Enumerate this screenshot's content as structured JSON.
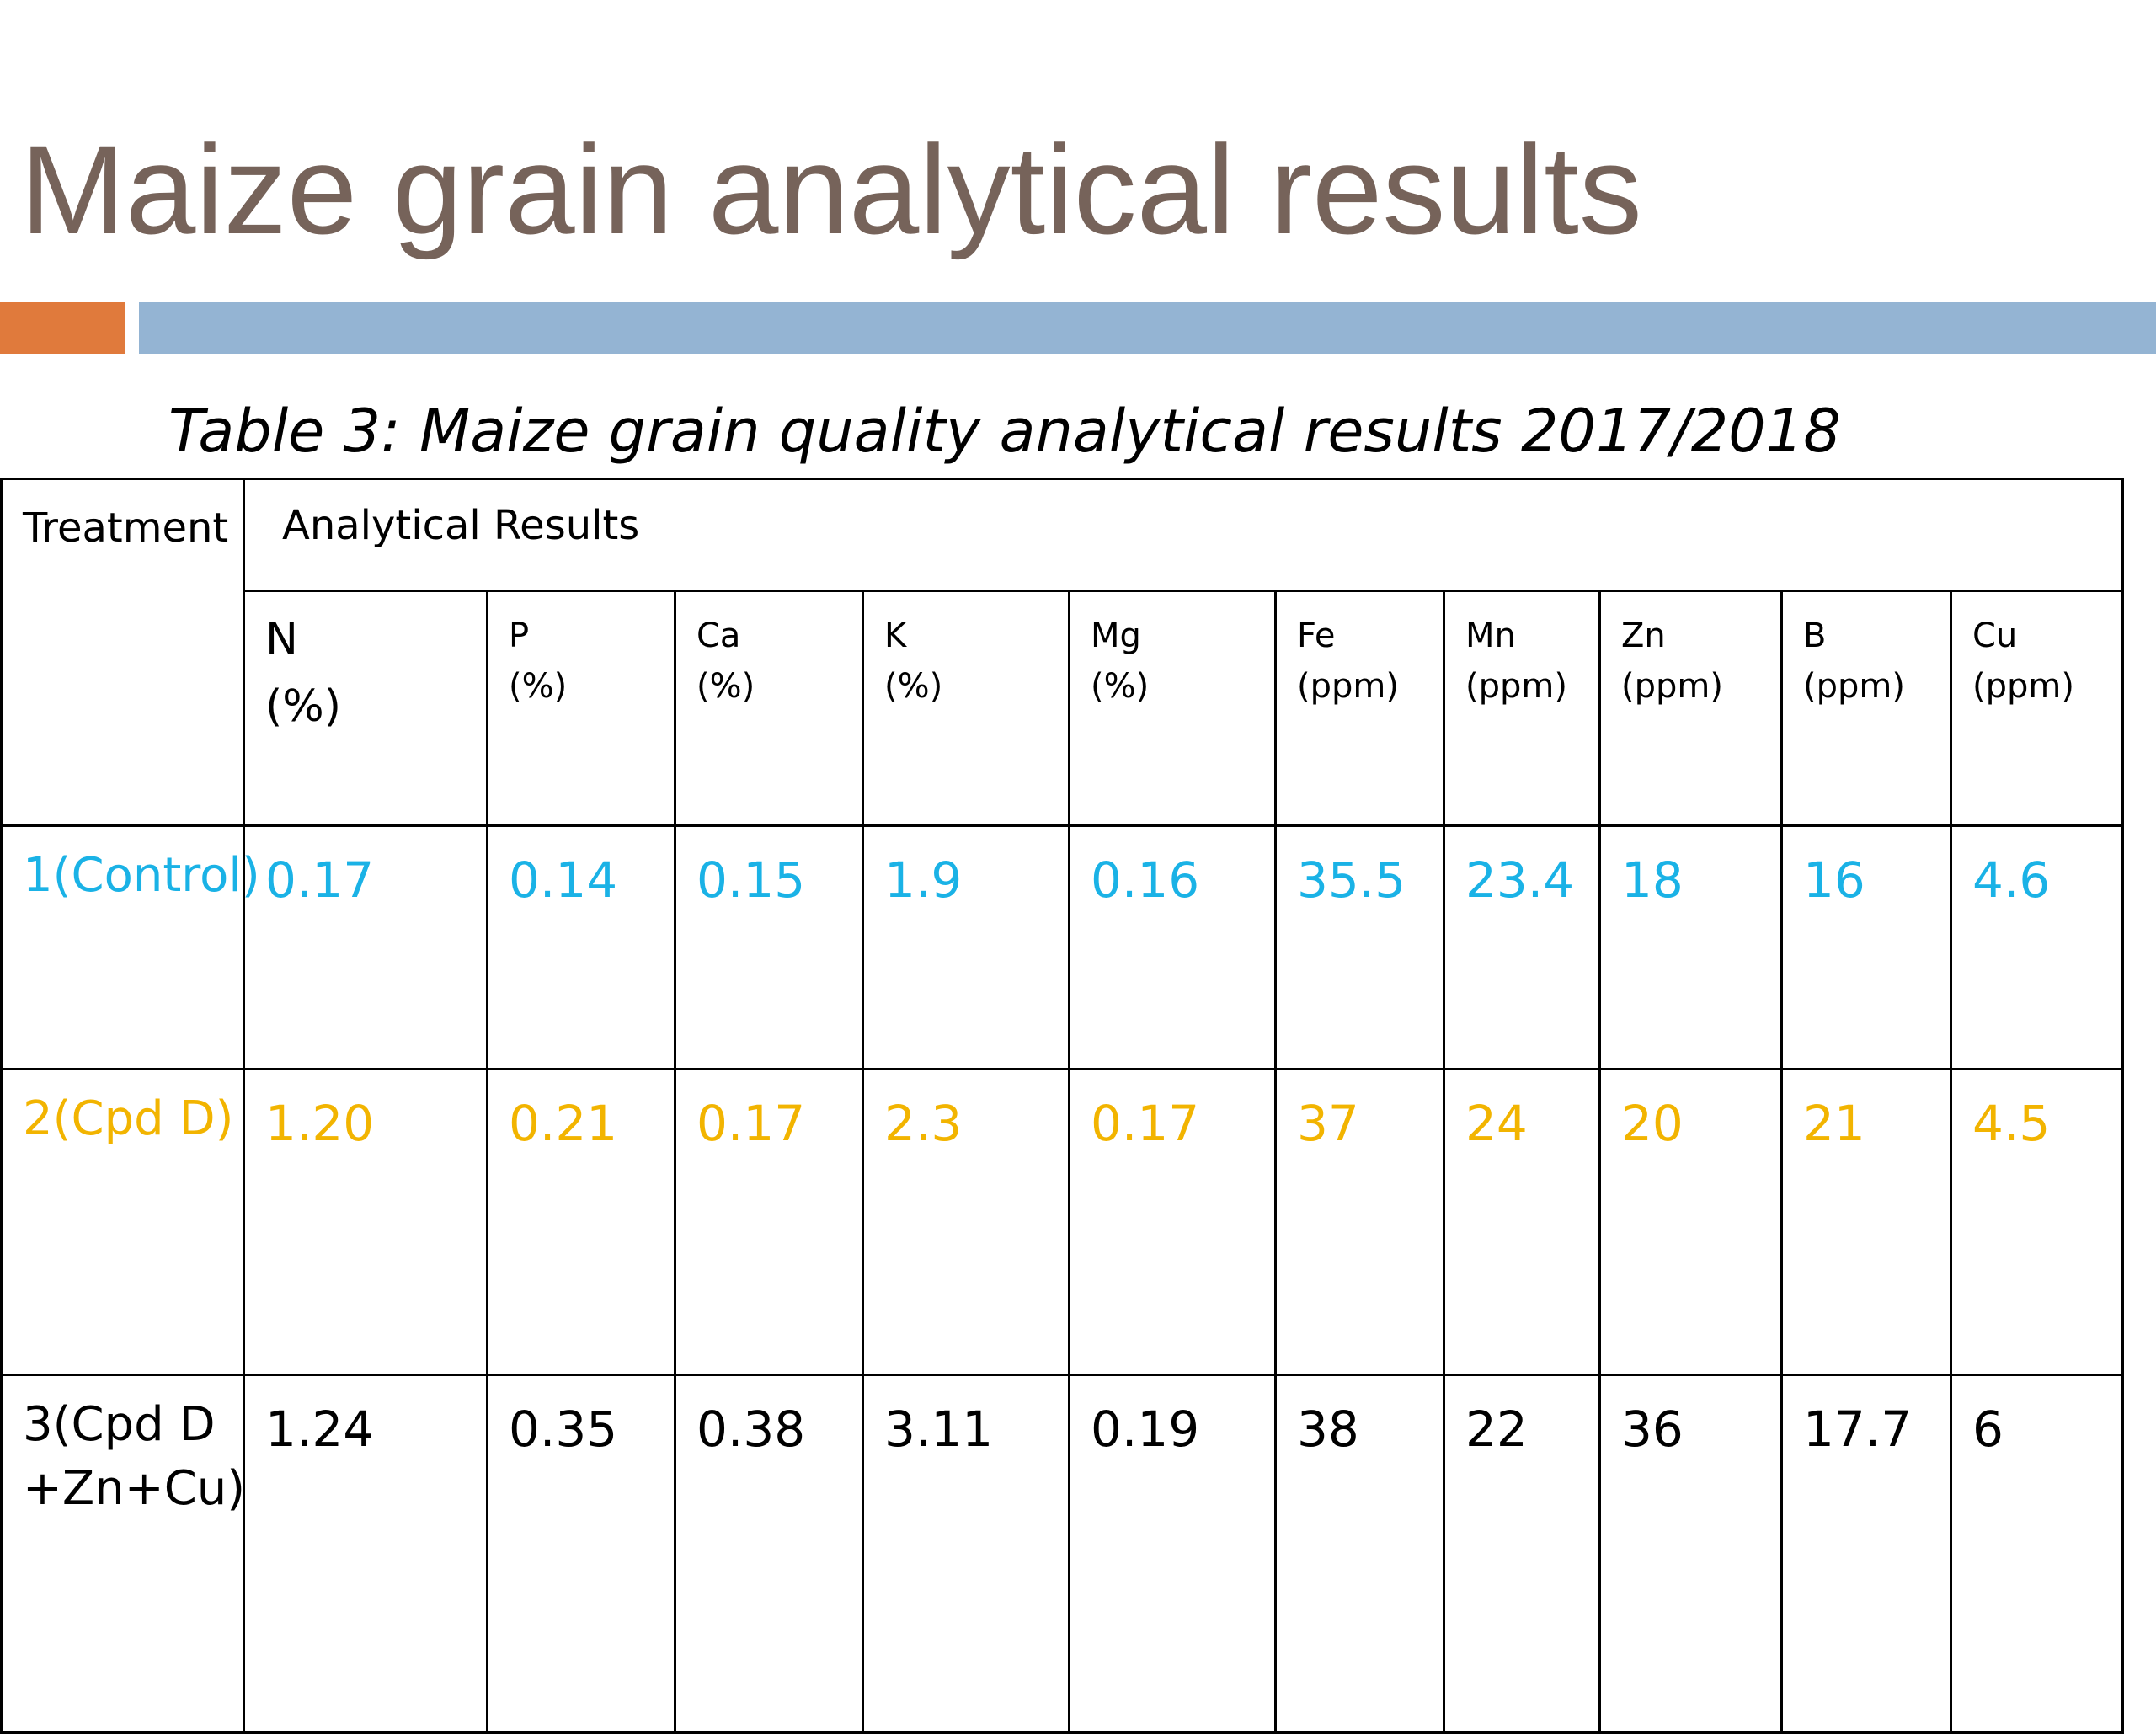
{
  "slide": {
    "title": "Maize grain analytical results",
    "colors": {
      "title": "#76635a",
      "accent_orange": "#e07a3c",
      "accent_blue": "#94b4d3"
    }
  },
  "table": {
    "caption": "Table 3: Maize grain quality analytical results 2017/2018",
    "treatment_header": "Treatment",
    "group_header": "Analytical Results",
    "columns": [
      {
        "name": "N",
        "unit": "(%)"
      },
      {
        "name": "P",
        "unit": "(%)"
      },
      {
        "name": "Ca",
        "unit": "(%)"
      },
      {
        "name": "K",
        "unit": "(%)"
      },
      {
        "name": "Mg",
        "unit": "(%)"
      },
      {
        "name": "Fe",
        "unit": "(ppm)"
      },
      {
        "name": "Mn",
        "unit": "(ppm)"
      },
      {
        "name": "Zn",
        "unit": "(ppm)"
      },
      {
        "name": "B",
        "unit": "(ppm)"
      },
      {
        "name": "Cu",
        "unit": "(ppm)"
      }
    ],
    "rows": [
      {
        "treatment": "1(Control)",
        "color": "#1ab2e6",
        "values": [
          "0.17",
          "0.14",
          "0.15",
          "1.9",
          "0.16",
          "35.5",
          "23.4",
          "18",
          "16",
          "4.6"
        ]
      },
      {
        "treatment": "2(Cpd D)",
        "color": "#f2b400",
        "values": [
          "1.20",
          "0.21",
          "0.17",
          "2.3",
          "0.17",
          "37",
          "24",
          "20",
          "21",
          "4.5"
        ]
      },
      {
        "treatment": "3(Cpd D +Zn+Cu)",
        "color": "#000000",
        "values": [
          "1.24",
          "0.35",
          "0.38",
          "3.11",
          "0.19",
          "38",
          "22",
          "36",
          "17.7",
          "6"
        ]
      }
    ]
  }
}
